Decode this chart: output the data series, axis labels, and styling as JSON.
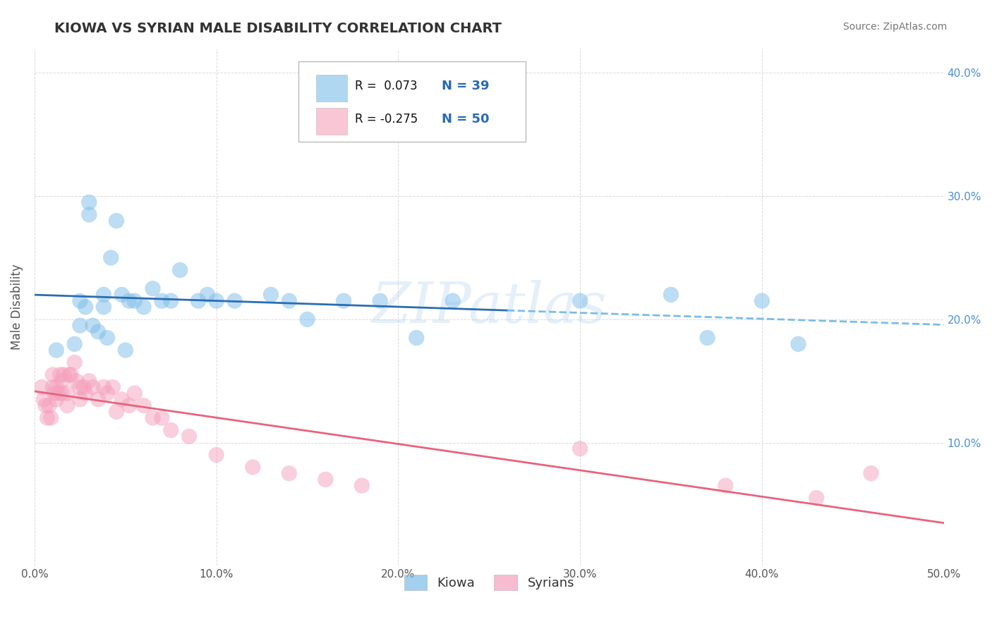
{
  "title": "KIOWA VS SYRIAN MALE DISABILITY CORRELATION CHART",
  "source_text": "Source: ZipAtlas.com",
  "ylabel": "Male Disability",
  "xlim": [
    0.0,
    0.5
  ],
  "ylim": [
    0.0,
    0.42
  ],
  "x_ticks": [
    0.0,
    0.1,
    0.2,
    0.3,
    0.4,
    0.5
  ],
  "x_tick_labels": [
    "0.0%",
    "10.0%",
    "20.0%",
    "30.0%",
    "40.0%",
    "50.0%"
  ],
  "y_ticks": [
    0.0,
    0.1,
    0.2,
    0.3,
    0.4
  ],
  "y_tick_labels_right": [
    "",
    "10.0%",
    "20.0%",
    "30.0%",
    "40.0%"
  ],
  "kiowa_R": 0.073,
  "kiowa_N": 39,
  "syrian_R": -0.275,
  "syrian_N": 50,
  "kiowa_color": "#7bbde8",
  "syrian_color": "#f5a0bc",
  "kiowa_line_color": "#2a6db5",
  "kiowa_line_dashed_color": "#7bbde8",
  "syrian_line_color": "#e8637e",
  "background_color": "#ffffff",
  "grid_color": "#d0d0d0",
  "watermark": "ZIPatlas",
  "kiowa_x": [
    0.012,
    0.022,
    0.025,
    0.025,
    0.028,
    0.03,
    0.03,
    0.032,
    0.035,
    0.038,
    0.038,
    0.04,
    0.042,
    0.045,
    0.048,
    0.05,
    0.052,
    0.055,
    0.06,
    0.065,
    0.07,
    0.075,
    0.08,
    0.09,
    0.095,
    0.1,
    0.11,
    0.13,
    0.14,
    0.15,
    0.17,
    0.19,
    0.21,
    0.23,
    0.3,
    0.35,
    0.37,
    0.4,
    0.42
  ],
  "kiowa_y": [
    0.175,
    0.18,
    0.195,
    0.215,
    0.21,
    0.285,
    0.295,
    0.195,
    0.19,
    0.21,
    0.22,
    0.185,
    0.25,
    0.28,
    0.22,
    0.175,
    0.215,
    0.215,
    0.21,
    0.225,
    0.215,
    0.215,
    0.24,
    0.215,
    0.22,
    0.215,
    0.215,
    0.22,
    0.215,
    0.2,
    0.215,
    0.215,
    0.185,
    0.215,
    0.215,
    0.22,
    0.185,
    0.215,
    0.18
  ],
  "syrian_x": [
    0.004,
    0.005,
    0.006,
    0.007,
    0.008,
    0.009,
    0.01,
    0.01,
    0.011,
    0.012,
    0.012,
    0.013,
    0.014,
    0.015,
    0.015,
    0.016,
    0.018,
    0.018,
    0.019,
    0.02,
    0.022,
    0.023,
    0.025,
    0.025,
    0.027,
    0.028,
    0.03,
    0.032,
    0.035,
    0.038,
    0.04,
    0.043,
    0.045,
    0.048,
    0.052,
    0.055,
    0.06,
    0.065,
    0.07,
    0.075,
    0.085,
    0.1,
    0.12,
    0.14,
    0.16,
    0.18,
    0.3,
    0.38,
    0.43,
    0.46
  ],
  "syrian_y": [
    0.145,
    0.135,
    0.13,
    0.12,
    0.13,
    0.12,
    0.145,
    0.155,
    0.14,
    0.135,
    0.145,
    0.14,
    0.155,
    0.14,
    0.15,
    0.155,
    0.14,
    0.13,
    0.155,
    0.155,
    0.165,
    0.15,
    0.145,
    0.135,
    0.145,
    0.14,
    0.15,
    0.145,
    0.135,
    0.145,
    0.14,
    0.145,
    0.125,
    0.135,
    0.13,
    0.14,
    0.13,
    0.12,
    0.12,
    0.11,
    0.105,
    0.09,
    0.08,
    0.075,
    0.07,
    0.065,
    0.095,
    0.065,
    0.055,
    0.075
  ]
}
